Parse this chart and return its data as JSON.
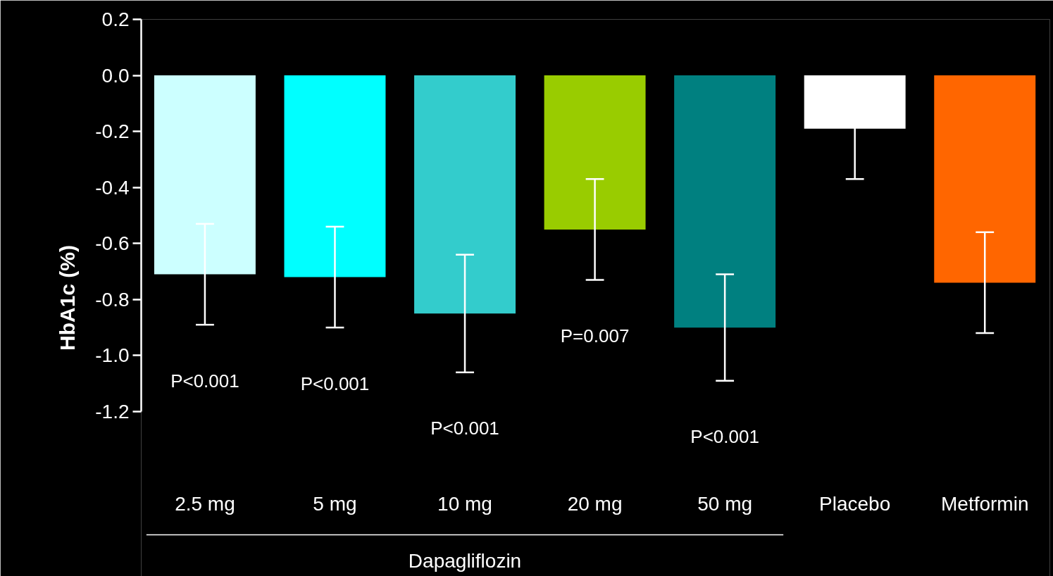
{
  "chart_data": {
    "type": "bar",
    "categories": [
      "2.5 mg",
      "5 mg",
      "10 mg",
      "20 mg",
      "50 mg",
      "Placebo",
      "Metformin"
    ],
    "values": [
      -0.71,
      -0.72,
      -0.85,
      -0.55,
      -0.9,
      -0.19,
      -0.74
    ],
    "colors": [
      "#ccffff",
      "#00ffff",
      "#33cccc",
      "#99cc00",
      "#008080",
      "#ffffff",
      "#ff6600"
    ],
    "errors": [
      0.18,
      0.18,
      0.21,
      0.18,
      0.19,
      0.18,
      0.18
    ],
    "ylabel": "HbA1c (%)",
    "xlabel": "Dapagliflozin",
    "ylim": [
      -1.2,
      0.2
    ],
    "yticks": [
      0.2,
      {
        "value": 0,
        "label": "0.0"
      },
      -0.2,
      -0.4,
      -0.6,
      -0.8,
      {
        "value": -1,
        "label": "-1.0"
      },
      -1.2
    ],
    "grid": false,
    "annotations": [
      "P<0.001",
      "P<0.001",
      "P<0.001",
      "P=0.007",
      "P<0.001"
    ]
  }
}
